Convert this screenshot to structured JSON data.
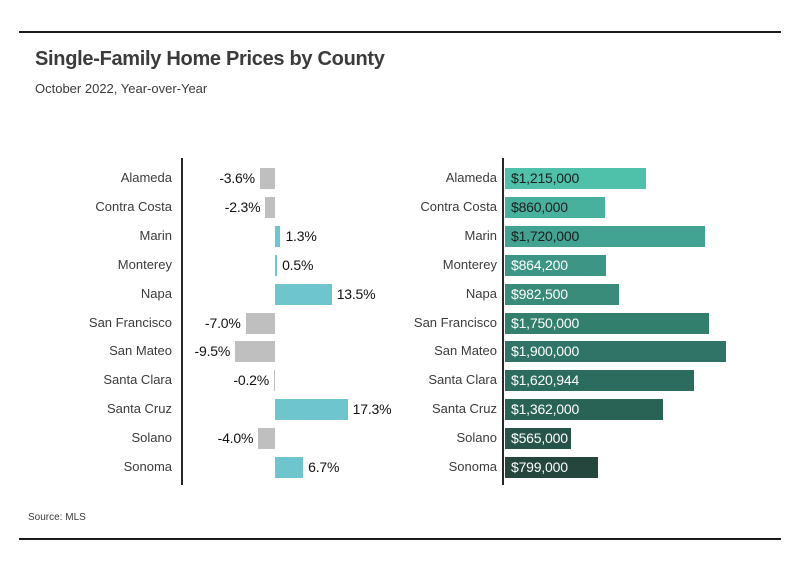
{
  "header": {
    "title": "Single-Family Home Prices by County",
    "subtitle": "October 2022, Year-over-Year"
  },
  "footer": {
    "source": "Source: MLS"
  },
  "colors": {
    "positive_bar": "#6fc5cd",
    "negative_bar": "#bfbfbf",
    "axis": "#262626",
    "rule": "#1a1a1a",
    "text": "#3b3b3b"
  },
  "chart_data": [
    {
      "type": "bar",
      "orientation": "horizontal",
      "title": "",
      "categories": [
        "Alameda",
        "Contra Costa",
        "Marin",
        "Monterey",
        "Napa",
        "San Francisco",
        "San Mateo",
        "Santa Clara",
        "Santa Cruz",
        "Solano",
        "Sonoma"
      ],
      "values": [
        -3.6,
        -2.3,
        1.3,
        0.5,
        13.5,
        -7.0,
        -9.5,
        -0.2,
        17.3,
        -4.0,
        6.7
      ],
      "value_labels": [
        "-3.6%",
        "-2.3%",
        "1.3%",
        "0.5%",
        "13.5%",
        "-7.0%",
        "-9.5%",
        "-0.2%",
        "17.3%",
        "-4.0%",
        "6.7%"
      ],
      "xlim": [
        -10,
        18
      ],
      "grid": false,
      "bar_color_positive": "#6fc5cd",
      "bar_color_negative": "#bfbfbf"
    },
    {
      "type": "bar",
      "orientation": "horizontal",
      "title": "",
      "categories": [
        "Alameda",
        "Contra Costa",
        "Marin",
        "Monterey",
        "Napa",
        "San Francisco",
        "San Mateo",
        "Santa Clara",
        "Santa Cruz",
        "Solano",
        "Sonoma"
      ],
      "values": [
        1215000,
        860000,
        1720000,
        864200,
        982500,
        1750000,
        1900000,
        1620944,
        1362000,
        565000,
        799000
      ],
      "value_labels": [
        "$1,215,000",
        "$860,000",
        "$1,720,000",
        "$864,200",
        "$982,500",
        "$1,750,000",
        "$1,900,000",
        "$1,620,944",
        "$1,362,000",
        "$565,000",
        "$799,000"
      ],
      "xlim": [
        0,
        1900000
      ],
      "grid": false,
      "bar_colors": [
        "#4fc0a9",
        "#48b19e",
        "#42a392",
        "#3d9585",
        "#398b7a",
        "#337f6e",
        "#2f7466",
        "#2c6c5e",
        "#296356",
        "#27544a",
        "#25463d"
      ],
      "value_label_colors": [
        "#1d1d1d",
        "#1d1d1d",
        "#1d1d1d",
        "#ffffff",
        "#ffffff",
        "#ffffff",
        "#ffffff",
        "#ffffff",
        "#ffffff",
        "#ffffff",
        "#ffffff"
      ]
    }
  ]
}
